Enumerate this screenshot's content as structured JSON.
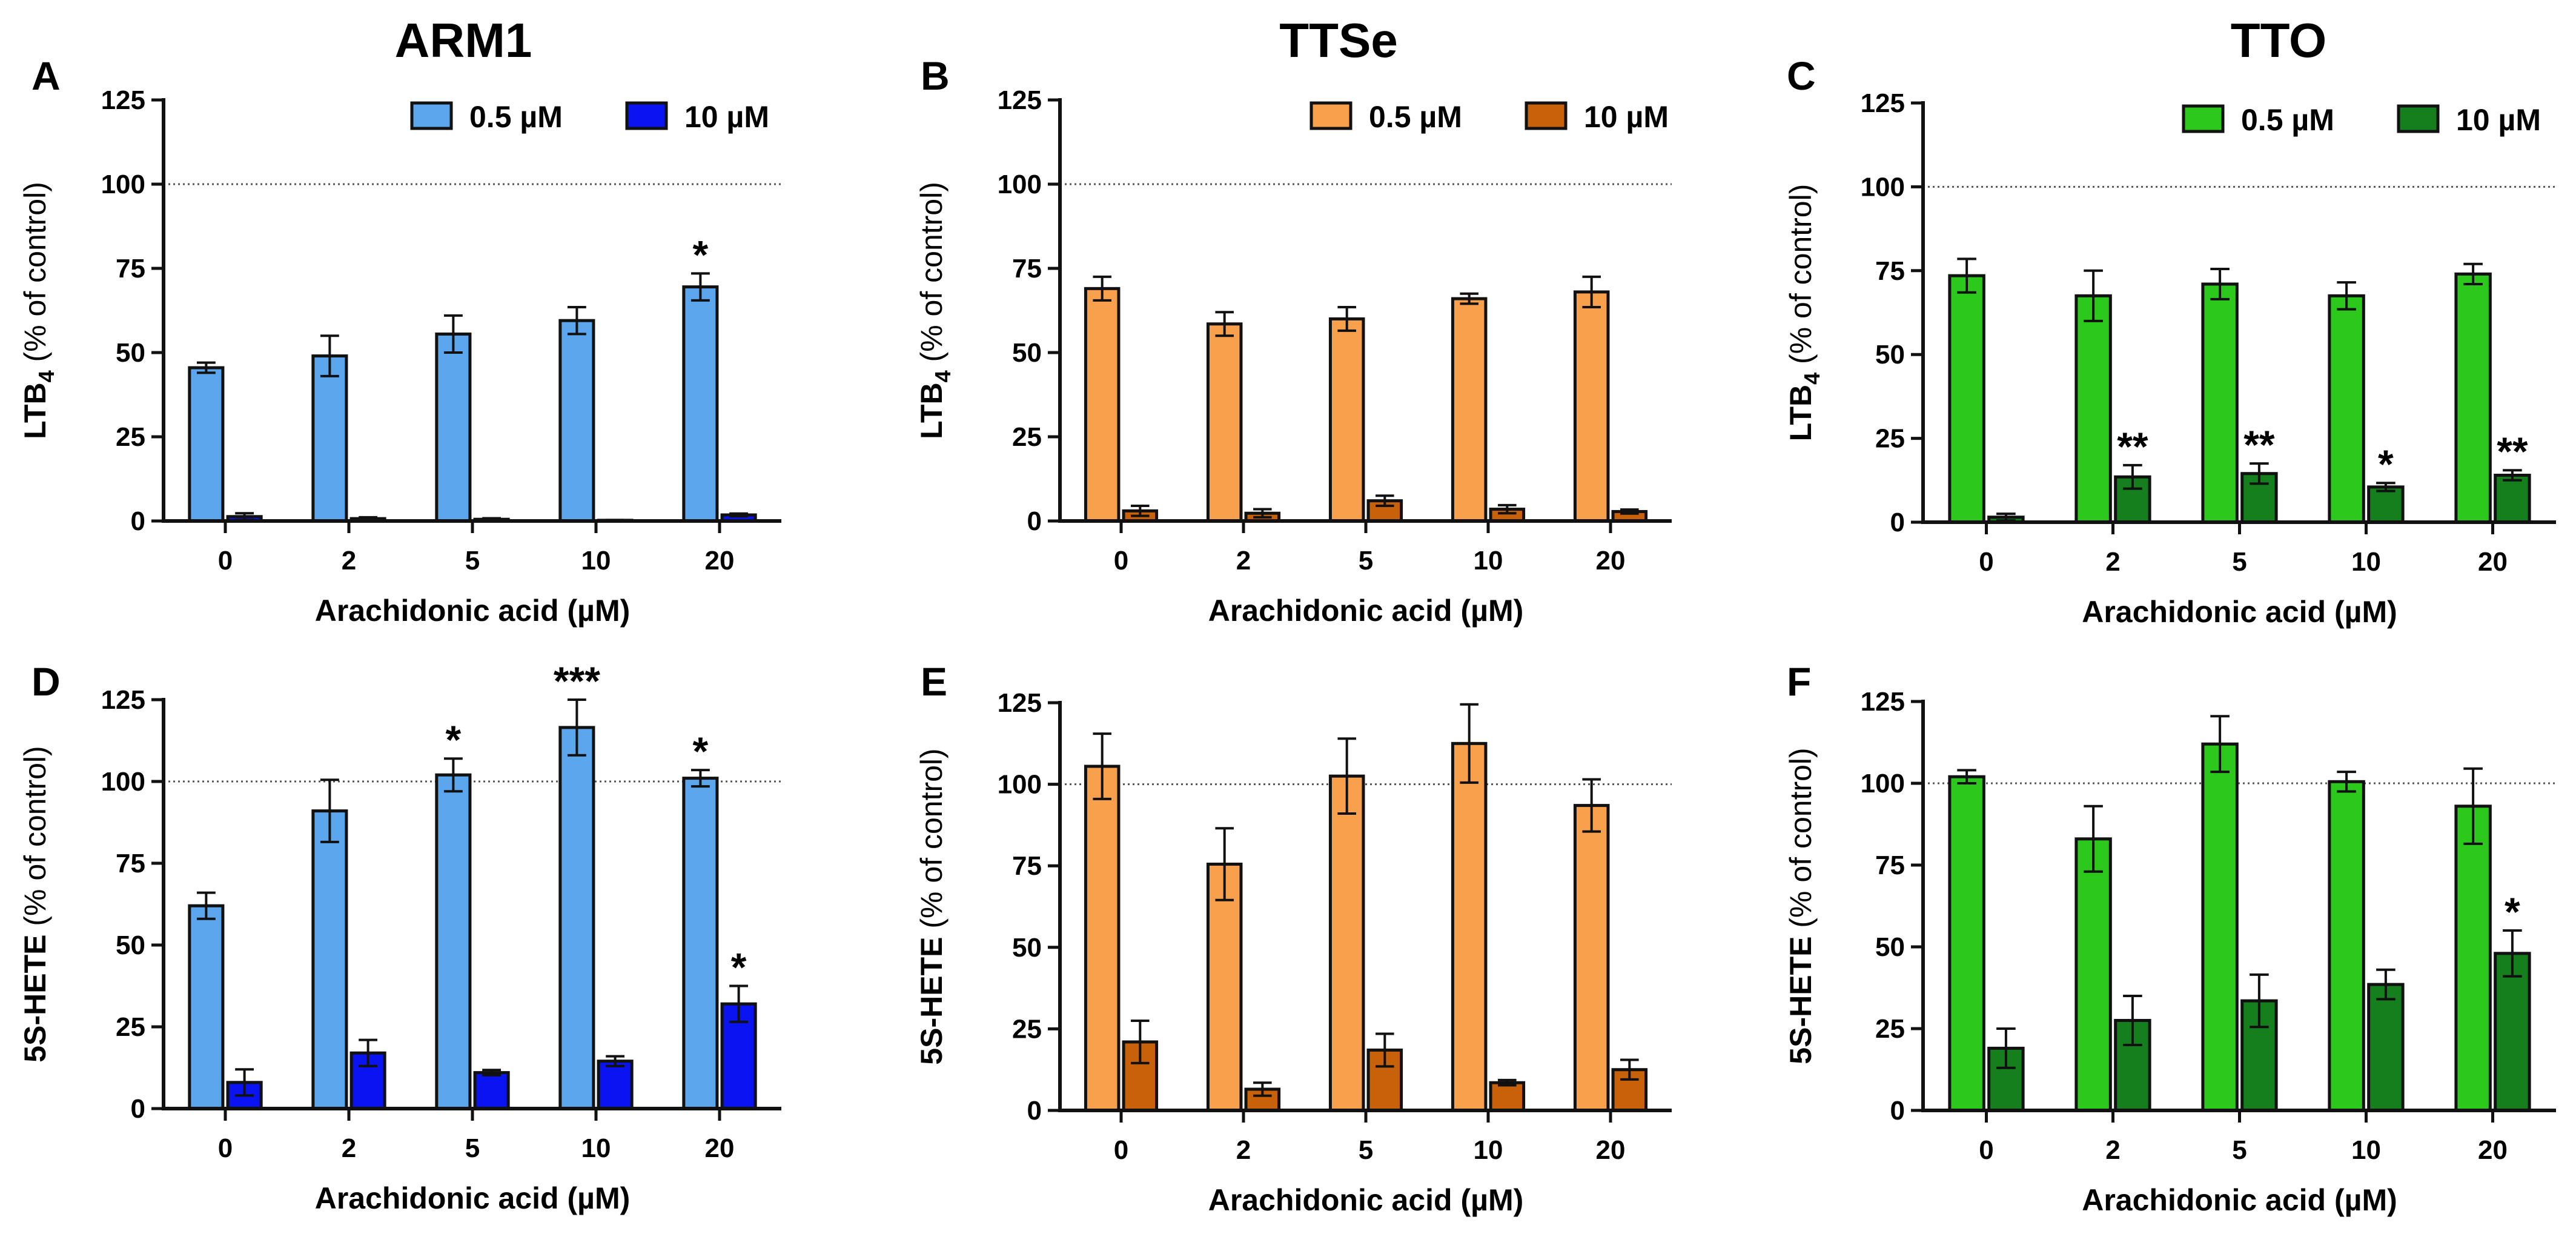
{
  "column_titles": [
    "ARM1",
    "TTSe",
    "TTO"
  ],
  "colors": {
    "ARM1": {
      "low": "#5ca6ee",
      "high": "#0a14f0"
    },
    "TTSe": {
      "low": "#f9a04c",
      "high": "#c7620a"
    },
    "TTO": {
      "low": "#2cc81c",
      "high": "#147f1c"
    }
  },
  "chart_data": [
    {
      "type": "bar",
      "panel": "A",
      "compound": "ARM1",
      "categories": [
        "0",
        "2",
        "5",
        "10",
        "20"
      ],
      "xlabel": "Arachidonic acid (µM)",
      "ylabel_main": "LTB",
      "ylabel_sub": "4",
      "ylabel_rest": " (% of control)",
      "ylim": [
        0,
        125
      ],
      "yticks": [
        "0",
        "25",
        "50",
        "75",
        "100",
        "125"
      ],
      "reference_line": 100,
      "legend_position": "top-right",
      "series": [
        {
          "name": "0.5 µM",
          "values": [
            45.5,
            49,
            55.5,
            59.5,
            69.5
          ],
          "errors": [
            1.5,
            6,
            5.5,
            4,
            4
          ],
          "sig": [
            "",
            "",
            "",
            "",
            "*"
          ]
        },
        {
          "name": "10 µM",
          "values": [
            1.3,
            0.7,
            0.5,
            0.2,
            1.8
          ],
          "errors": [
            1,
            0.4,
            0.3,
            0.1,
            0.4
          ],
          "sig": [
            "",
            "",
            "",
            "",
            ""
          ]
        }
      ]
    },
    {
      "type": "bar",
      "panel": "B",
      "compound": "TTSe",
      "categories": [
        "0",
        "2",
        "5",
        "10",
        "20"
      ],
      "xlabel": "Arachidonic acid (µM)",
      "ylabel_main": "LTB",
      "ylabel_sub": "4",
      "ylabel_rest": " (% of control)",
      "ylim": [
        0,
        125
      ],
      "yticks": [
        "0",
        "25",
        "50",
        "75",
        "100",
        "125"
      ],
      "reference_line": 100,
      "legend_position": "top-right",
      "series": [
        {
          "name": "0.5 µM",
          "values": [
            69,
            58.5,
            60,
            66,
            68
          ],
          "errors": [
            3.5,
            3.5,
            3.5,
            1.5,
            4.5
          ],
          "sig": [
            "",
            "",
            "",
            "",
            ""
          ]
        },
        {
          "name": "10 µM",
          "values": [
            3,
            2.3,
            6,
            3.5,
            2.8
          ],
          "errors": [
            1.5,
            1.2,
            1.5,
            1.2,
            0.6
          ],
          "sig": [
            "",
            "",
            "",
            "",
            ""
          ]
        }
      ]
    },
    {
      "type": "bar",
      "panel": "C",
      "compound": "TTO",
      "categories": [
        "0",
        "2",
        "5",
        "10",
        "20"
      ],
      "xlabel": "Arachidonic acid (µM)",
      "ylabel_main": "LTB",
      "ylabel_sub": "4",
      "ylabel_rest": " (% of control)",
      "ylim": [
        0,
        125
      ],
      "yticks": [
        "0",
        "25",
        "50",
        "75",
        "100",
        "125"
      ],
      "reference_line": 100,
      "legend_position": "top-right",
      "series": [
        {
          "name": "0.5 µM",
          "values": [
            73.5,
            67.5,
            71,
            67.5,
            74
          ],
          "errors": [
            5,
            7.5,
            4.5,
            4,
            3
          ],
          "sig": [
            "",
            "",
            "",
            "",
            ""
          ]
        },
        {
          "name": "10 µM",
          "values": [
            1.5,
            13.5,
            14.5,
            10.5,
            14
          ],
          "errors": [
            1,
            3.5,
            3,
            1.2,
            1.5
          ],
          "sig": [
            "",
            "**",
            "**",
            "*",
            "**"
          ]
        }
      ]
    },
    {
      "type": "bar",
      "panel": "D",
      "compound": "ARM1",
      "categories": [
        "0",
        "2",
        "5",
        "10",
        "20"
      ],
      "xlabel": "Arachidonic acid (µM)",
      "ylabel_main": "5S-HETE",
      "ylabel_sub": "",
      "ylabel_rest": " (% of control)",
      "ylim": [
        0,
        125
      ],
      "yticks": [
        "0",
        "25",
        "50",
        "75",
        "100",
        "125"
      ],
      "reference_line": 100,
      "legend_position": "none",
      "series": [
        {
          "name": "0.5 µM",
          "values": [
            62,
            91,
            102,
            116.5,
            101
          ],
          "errors": [
            4,
            9.5,
            5,
            8.5,
            2.5
          ],
          "sig": [
            "",
            "",
            "*",
            "***",
            "*"
          ]
        },
        {
          "name": "10 µM",
          "values": [
            8,
            17,
            11,
            14.5,
            32
          ],
          "errors": [
            4,
            4,
            0.8,
            1.5,
            5.5
          ],
          "sig": [
            "",
            "",
            "",
            "",
            "*"
          ]
        }
      ]
    },
    {
      "type": "bar",
      "panel": "E",
      "compound": "TTSe",
      "categories": [
        "0",
        "2",
        "5",
        "10",
        "20"
      ],
      "xlabel": "Arachidonic acid (µM)",
      "ylabel_main": "5S-HETE",
      "ylabel_sub": "",
      "ylabel_rest": " (% of control)",
      "ylim": [
        0,
        125
      ],
      "yticks": [
        "0",
        "25",
        "50",
        "75",
        "100",
        "125"
      ],
      "reference_line": 100,
      "legend_position": "none",
      "series": [
        {
          "name": "0.5 µM",
          "values": [
            105.5,
            75.5,
            102.5,
            112.5,
            93.5
          ],
          "errors": [
            10,
            11,
            11.5,
            12,
            8
          ],
          "sig": [
            "",
            "",
            "",
            "",
            ""
          ]
        },
        {
          "name": "10 µM",
          "values": [
            21,
            6.5,
            18.5,
            8.5,
            12.5
          ],
          "errors": [
            6.5,
            2,
            5,
            0.8,
            3
          ],
          "sig": [
            "",
            "",
            "",
            "",
            ""
          ]
        }
      ]
    },
    {
      "type": "bar",
      "panel": "F",
      "compound": "TTO",
      "categories": [
        "0",
        "2",
        "5",
        "10",
        "20"
      ],
      "xlabel": "Arachidonic acid (µM)",
      "ylabel_main": "5S-HETE",
      "ylabel_sub": "",
      "ylabel_rest": " (% of control)",
      "ylim": [
        0,
        125
      ],
      "yticks": [
        "0",
        "25",
        "50",
        "75",
        "100",
        "125"
      ],
      "reference_line": 100,
      "legend_position": "none",
      "series": [
        {
          "name": "0.5 µM",
          "values": [
            102,
            83,
            112,
            100.5,
            93
          ],
          "errors": [
            2,
            10,
            8.5,
            3,
            11.5
          ],
          "sig": [
            "",
            "",
            "",
            "",
            ""
          ]
        },
        {
          "name": "10 µM",
          "values": [
            19,
            27.5,
            33.5,
            38.5,
            48
          ],
          "errors": [
            6,
            7.5,
            8,
            4.5,
            7
          ],
          "sig": [
            "",
            "",
            "",
            "",
            "*"
          ]
        }
      ]
    }
  ]
}
